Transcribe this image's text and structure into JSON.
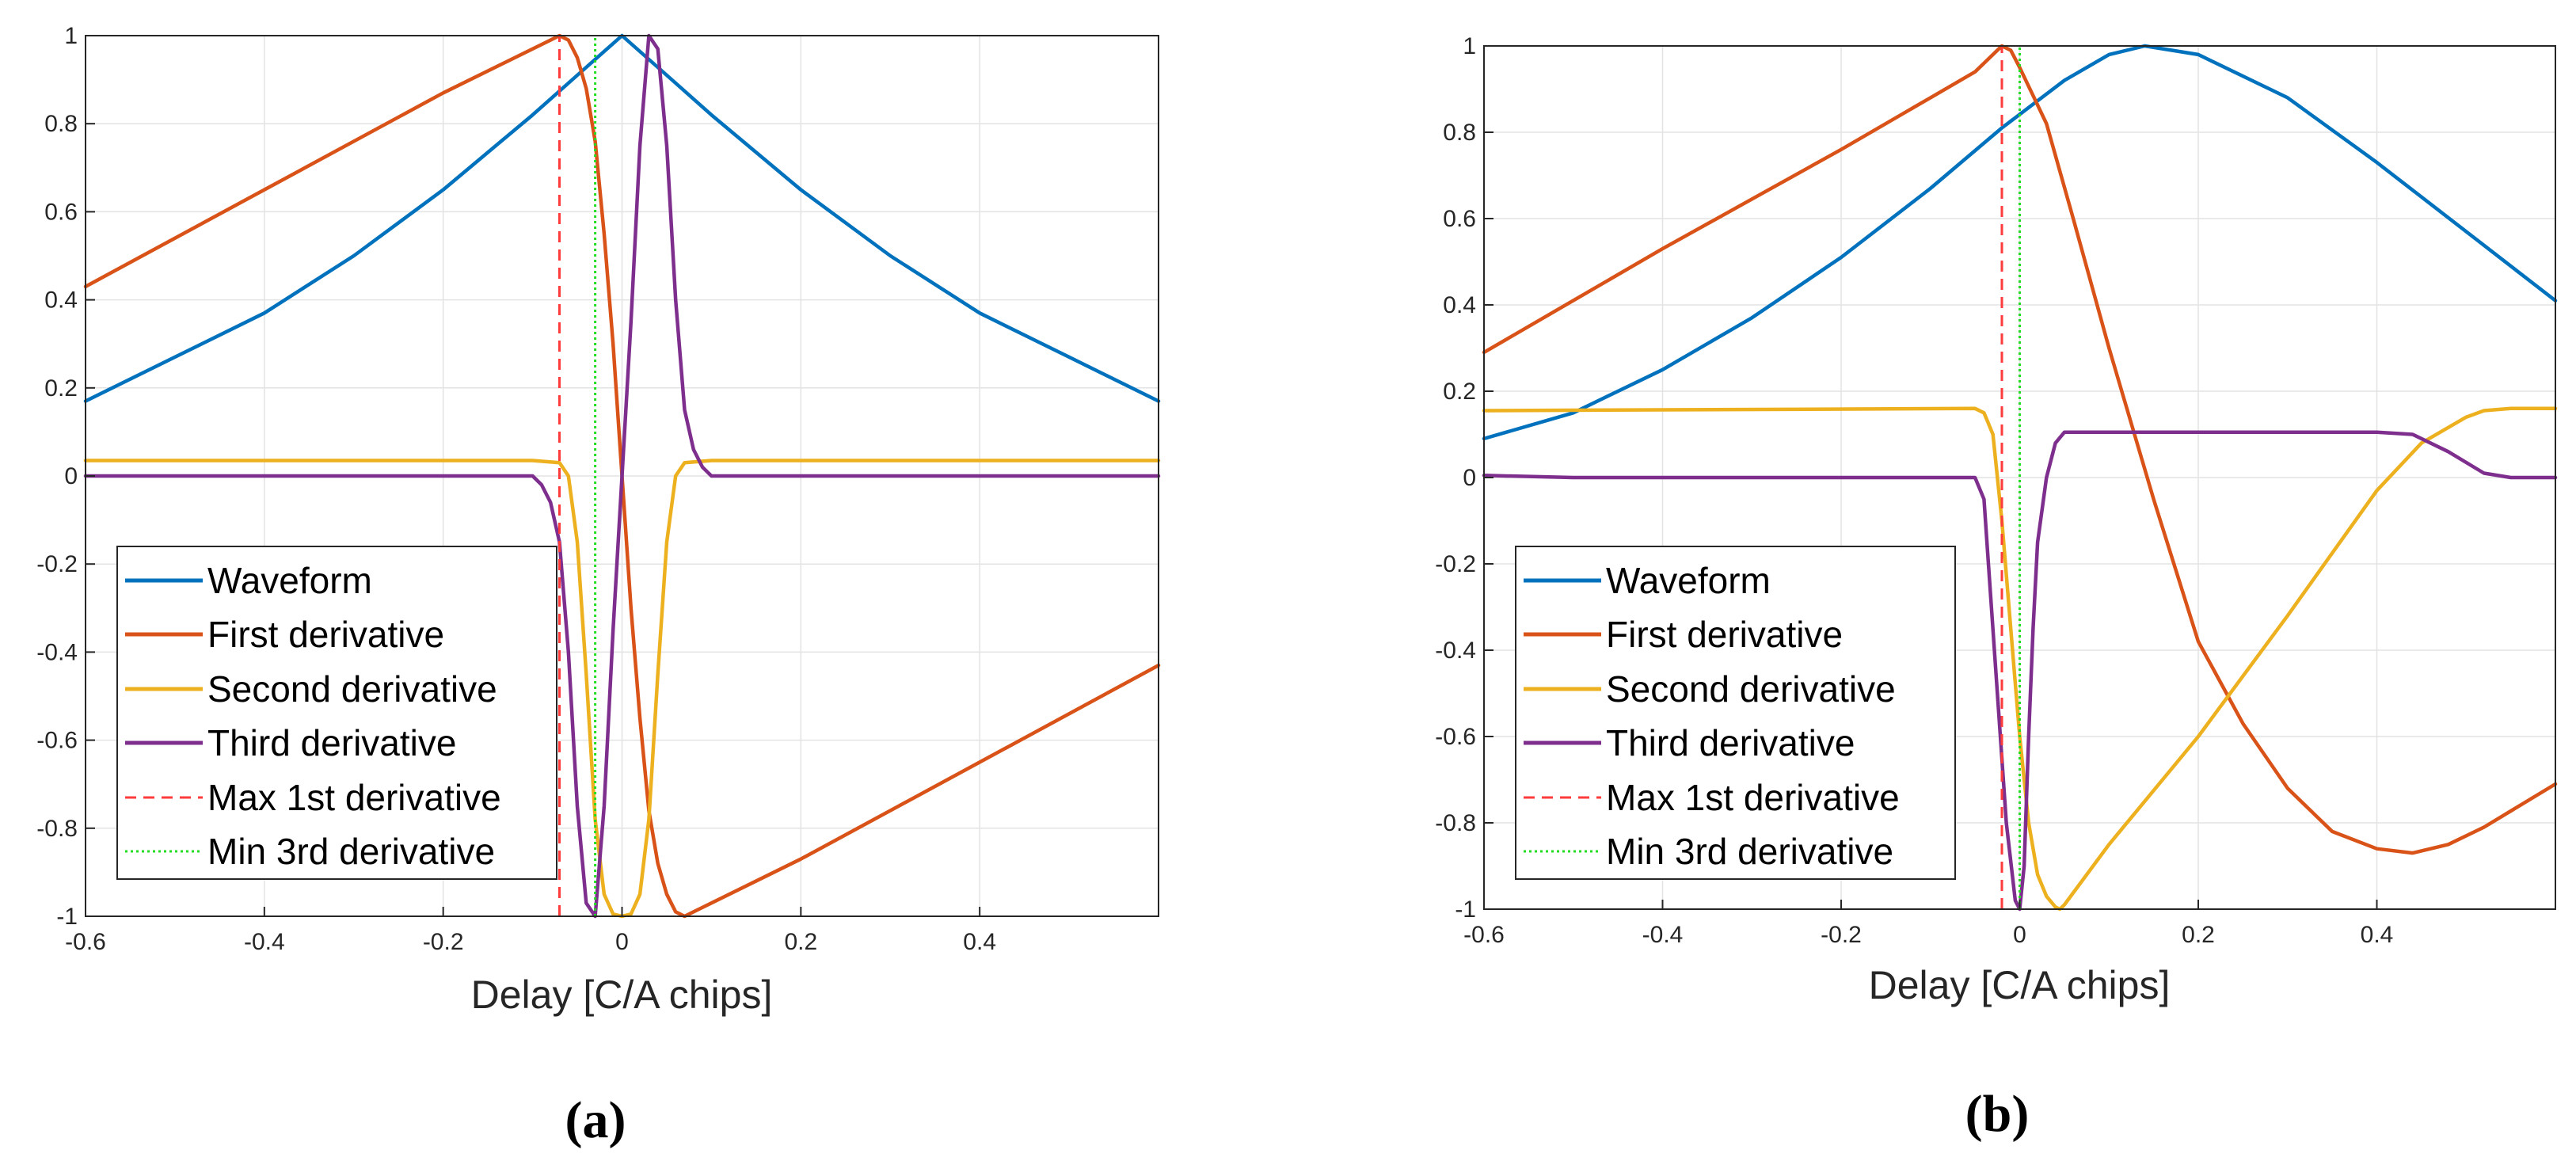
{
  "colors": {
    "waveform": "#0072BD",
    "first_derivative": "#D95319",
    "second_derivative": "#EDB120",
    "third_derivative": "#7E2F8E",
    "max_first_derivative": "#FF3B3B",
    "min_third_derivative": "#22DD22"
  },
  "chart_data": [
    {
      "type": "line",
      "panel_label": "(a)",
      "xlabel": "Delay [C/A chips]",
      "ylabel": "",
      "xlim": [
        -0.6,
        0.6
      ],
      "ylim": [
        -1,
        1
      ],
      "grid": true,
      "legend_position": "bottom-left",
      "xticks": [
        -0.6,
        -0.4,
        -0.2,
        0,
        0.2,
        0.4
      ],
      "xtick_labels": [
        "-0.6",
        "-0.4",
        "-0.2",
        "0",
        "0.2",
        "0.4"
      ],
      "yticks": [
        -1,
        -0.8,
        -0.6,
        -0.4,
        -0.2,
        0,
        0.2,
        0.4,
        0.6,
        0.8,
        1
      ],
      "ytick_labels": [
        "-1",
        "-0.8",
        "-0.6",
        "-0.4",
        "-0.2",
        "0",
        "0.2",
        "0.4",
        "0.6",
        "0.8",
        "1"
      ],
      "series": [
        {
          "name": "Waveform",
          "style": "solid",
          "x": [
            -0.6,
            -0.5,
            -0.4,
            -0.3,
            -0.2,
            -0.1,
            -0.05,
            0,
            0.05,
            0.1,
            0.2,
            0.3,
            0.4,
            0.5,
            0.6
          ],
          "y": [
            0.17,
            0.27,
            0.37,
            0.5,
            0.65,
            0.82,
            0.91,
            1.0,
            0.91,
            0.82,
            0.65,
            0.5,
            0.37,
            0.27,
            0.17
          ]
        },
        {
          "name": "First derivative",
          "style": "solid",
          "x": [
            -0.6,
            -0.4,
            -0.2,
            -0.08,
            -0.07,
            -0.06,
            -0.05,
            -0.04,
            -0.03,
            -0.02,
            -0.01,
            0,
            0.01,
            0.02,
            0.03,
            0.04,
            0.05,
            0.06,
            0.07,
            0.08,
            0.2,
            0.4,
            0.6
          ],
          "y": [
            0.43,
            0.65,
            0.87,
            0.99,
            1.0,
            0.99,
            0.95,
            0.88,
            0.76,
            0.55,
            0.3,
            0.0,
            -0.3,
            -0.55,
            -0.76,
            -0.88,
            -0.95,
            -0.99,
            -1.0,
            -0.99,
            -0.87,
            -0.65,
            -0.43
          ]
        },
        {
          "name": "Second derivative",
          "style": "solid",
          "x": [
            -0.6,
            -0.1,
            -0.07,
            -0.06,
            -0.05,
            -0.04,
            -0.03,
            -0.02,
            -0.01,
            0,
            0.01,
            0.02,
            0.03,
            0.04,
            0.05,
            0.06,
            0.07,
            0.1,
            0.6
          ],
          "y": [
            0.035,
            0.035,
            0.03,
            0.0,
            -0.15,
            -0.45,
            -0.78,
            -0.95,
            -0.995,
            -1.0,
            -0.995,
            -0.95,
            -0.78,
            -0.45,
            -0.15,
            0.0,
            0.03,
            0.035,
            0.035
          ]
        },
        {
          "name": "Third derivative",
          "style": "solid",
          "x": [
            -0.6,
            -0.1,
            -0.09,
            -0.08,
            -0.07,
            -0.06,
            -0.05,
            -0.04,
            -0.03,
            -0.02,
            -0.01,
            0,
            0.01,
            0.02,
            0.03,
            0.04,
            0.05,
            0.06,
            0.07,
            0.08,
            0.09,
            0.1,
            0.6
          ],
          "y": [
            0.0,
            0.0,
            -0.02,
            -0.06,
            -0.15,
            -0.4,
            -0.75,
            -0.97,
            -1.0,
            -0.75,
            -0.35,
            0.0,
            0.35,
            0.75,
            1.0,
            0.97,
            0.75,
            0.4,
            0.15,
            0.06,
            0.02,
            0.0,
            0.0
          ]
        },
        {
          "name": "Max 1st derivative",
          "style": "dashed",
          "x": [
            -0.07,
            -0.07
          ],
          "y": [
            -1,
            1
          ]
        },
        {
          "name": "Min 3rd derivative",
          "style": "dotted",
          "x": [
            -0.03,
            -0.03
          ],
          "y": [
            -1,
            1
          ]
        }
      ]
    },
    {
      "type": "line",
      "panel_label": "(b)",
      "xlabel": "Delay [C/A chips]",
      "ylabel": "",
      "xlim": [
        -0.6,
        0.6
      ],
      "ylim": [
        -1,
        1
      ],
      "grid": true,
      "legend_position": "bottom-left",
      "xticks": [
        -0.6,
        -0.4,
        -0.2,
        0,
        0.2,
        0.4
      ],
      "xtick_labels": [
        "-0.6",
        "-0.4",
        "-0.2",
        "0",
        "0.2",
        "0.4"
      ],
      "yticks": [
        -1,
        -0.8,
        -0.6,
        -0.4,
        -0.2,
        0,
        0.2,
        0.4,
        0.6,
        0.8,
        1
      ],
      "ytick_labels": [
        "-1",
        "-0.8",
        "-0.6",
        "-0.4",
        "-0.2",
        "0",
        "0.2",
        "0.4",
        "0.6",
        "0.8",
        "1"
      ],
      "series": [
        {
          "name": "Waveform",
          "style": "solid",
          "x": [
            -0.6,
            -0.5,
            -0.4,
            -0.3,
            -0.2,
            -0.1,
            -0.02,
            0.05,
            0.1,
            0.14,
            0.2,
            0.3,
            0.4,
            0.5,
            0.6
          ],
          "y": [
            0.09,
            0.15,
            0.25,
            0.37,
            0.51,
            0.67,
            0.81,
            0.92,
            0.98,
            1.0,
            0.98,
            0.88,
            0.73,
            0.57,
            0.41
          ]
        },
        {
          "name": "First derivative",
          "style": "solid",
          "x": [
            -0.6,
            -0.4,
            -0.2,
            -0.1,
            -0.05,
            -0.03,
            -0.02,
            -0.01,
            0,
            0.03,
            0.06,
            0.1,
            0.15,
            0.2,
            0.25,
            0.3,
            0.35,
            0.4,
            0.44,
            0.48,
            0.52,
            0.6
          ],
          "y": [
            0.29,
            0.53,
            0.76,
            0.88,
            0.94,
            0.98,
            1.0,
            0.99,
            0.95,
            0.82,
            0.6,
            0.3,
            -0.05,
            -0.38,
            -0.57,
            -0.72,
            -0.82,
            -0.86,
            -0.87,
            -0.85,
            -0.81,
            -0.71
          ]
        },
        {
          "name": "Second derivative",
          "style": "solid",
          "x": [
            -0.6,
            -0.05,
            -0.04,
            -0.03,
            -0.02,
            -0.01,
            0,
            0.01,
            0.02,
            0.03,
            0.04,
            0.045,
            0.05,
            0.1,
            0.2,
            0.3,
            0.4,
            0.45,
            0.5,
            0.52,
            0.55,
            0.6
          ],
          "y": [
            0.155,
            0.16,
            0.15,
            0.1,
            -0.1,
            -0.35,
            -0.6,
            -0.8,
            -0.92,
            -0.97,
            -0.995,
            -1.0,
            -0.99,
            -0.85,
            -0.6,
            -0.32,
            -0.03,
            0.08,
            0.14,
            0.155,
            0.16,
            0.16
          ]
        },
        {
          "name": "Third derivative",
          "style": "solid",
          "x": [
            -0.6,
            -0.5,
            -0.4,
            -0.05,
            -0.04,
            -0.035,
            -0.025,
            -0.015,
            -0.005,
            0,
            0.005,
            0.01,
            0.015,
            0.02,
            0.03,
            0.04,
            0.05,
            0.4,
            0.44,
            0.48,
            0.52,
            0.55,
            0.6
          ],
          "y": [
            0.005,
            0.0,
            0.0,
            0.0,
            -0.05,
            -0.2,
            -0.5,
            -0.8,
            -0.98,
            -1.0,
            -0.9,
            -0.6,
            -0.35,
            -0.15,
            0.0,
            0.08,
            0.105,
            0.105,
            0.1,
            0.06,
            0.01,
            0.0,
            0.0
          ]
        },
        {
          "name": "Max 1st derivative",
          "style": "dashed",
          "x": [
            -0.02,
            -0.02
          ],
          "y": [
            -1,
            1
          ]
        },
        {
          "name": "Min 3rd derivative",
          "style": "dotted",
          "x": [
            0.0,
            0.0
          ],
          "y": [
            -1,
            1
          ]
        }
      ]
    }
  ]
}
